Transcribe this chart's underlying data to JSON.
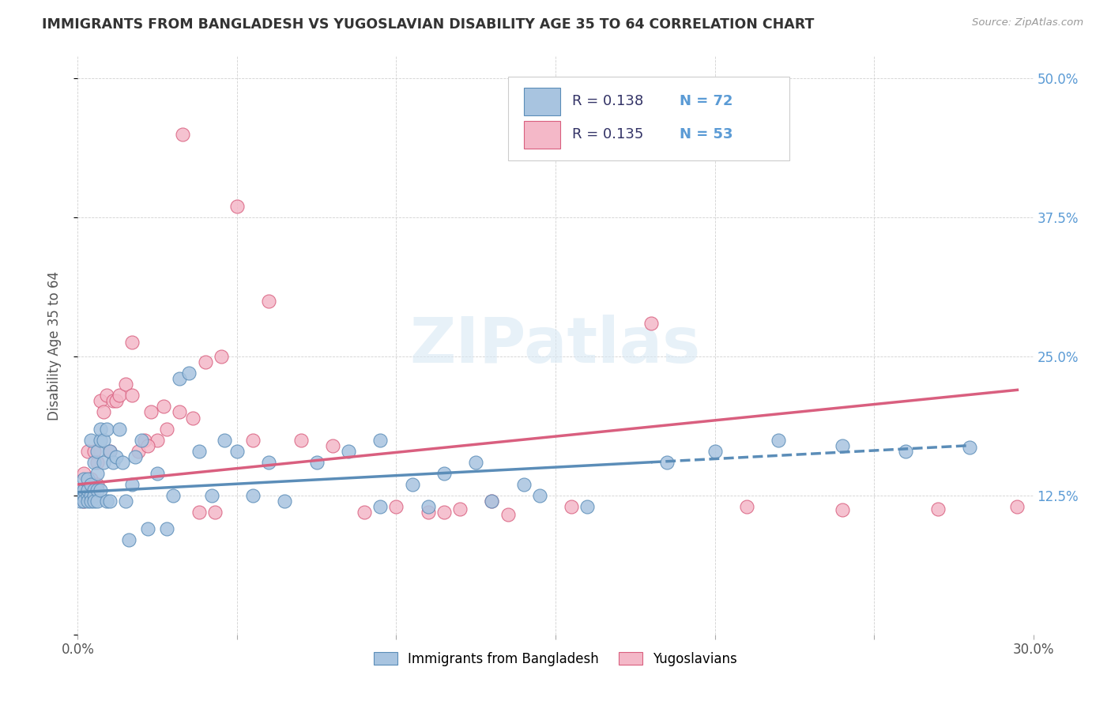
{
  "title": "IMMIGRANTS FROM BANGLADESH VS YUGOSLAVIAN DISABILITY AGE 35 TO 64 CORRELATION CHART",
  "source": "Source: ZipAtlas.com",
  "xlabel": "",
  "ylabel": "Disability Age 35 to 64",
  "xlim": [
    0.0,
    0.3
  ],
  "ylim": [
    0.0,
    0.52
  ],
  "xticks": [
    0.0,
    0.05,
    0.1,
    0.15,
    0.2,
    0.25,
    0.3
  ],
  "xtick_labels": [
    "0.0%",
    "",
    "",
    "",
    "",
    "",
    "30.0%"
  ],
  "yticks": [
    0.0,
    0.125,
    0.25,
    0.375,
    0.5
  ],
  "ytick_labels": [
    "",
    "12.5%",
    "25.0%",
    "37.5%",
    "50.0%"
  ],
  "color_bangladesh": "#a8c4e0",
  "color_yugoslavian": "#f4b8c8",
  "line_color_bangladesh": "#5b8db8",
  "line_color_yugoslavian": "#d95f7f",
  "background_color": "#ffffff",
  "watermark": "ZIPatlas",
  "bangladesh_x": [
    0.001,
    0.001,
    0.001,
    0.002,
    0.002,
    0.002,
    0.002,
    0.003,
    0.003,
    0.003,
    0.003,
    0.004,
    0.004,
    0.004,
    0.004,
    0.005,
    0.005,
    0.005,
    0.005,
    0.006,
    0.006,
    0.006,
    0.006,
    0.007,
    0.007,
    0.007,
    0.008,
    0.008,
    0.009,
    0.009,
    0.01,
    0.01,
    0.011,
    0.012,
    0.013,
    0.014,
    0.015,
    0.016,
    0.017,
    0.018,
    0.02,
    0.022,
    0.025,
    0.028,
    0.03,
    0.032,
    0.035,
    0.038,
    0.042,
    0.046,
    0.05,
    0.055,
    0.06,
    0.065,
    0.075,
    0.085,
    0.095,
    0.105,
    0.115,
    0.13,
    0.145,
    0.16,
    0.185,
    0.2,
    0.22,
    0.24,
    0.26,
    0.28,
    0.095,
    0.11,
    0.125,
    0.14
  ],
  "bangladesh_y": [
    0.125,
    0.13,
    0.12,
    0.125,
    0.13,
    0.12,
    0.14,
    0.125,
    0.13,
    0.12,
    0.14,
    0.125,
    0.135,
    0.12,
    0.175,
    0.13,
    0.125,
    0.155,
    0.12,
    0.145,
    0.13,
    0.165,
    0.12,
    0.175,
    0.185,
    0.13,
    0.155,
    0.175,
    0.185,
    0.12,
    0.165,
    0.12,
    0.155,
    0.16,
    0.185,
    0.155,
    0.12,
    0.085,
    0.135,
    0.16,
    0.175,
    0.095,
    0.145,
    0.095,
    0.125,
    0.23,
    0.235,
    0.165,
    0.125,
    0.175,
    0.165,
    0.125,
    0.155,
    0.12,
    0.155,
    0.165,
    0.175,
    0.135,
    0.145,
    0.12,
    0.125,
    0.115,
    0.155,
    0.165,
    0.175,
    0.17,
    0.165,
    0.168,
    0.115,
    0.115,
    0.155,
    0.135
  ],
  "yugoslavian_x": [
    0.001,
    0.002,
    0.002,
    0.003,
    0.003,
    0.004,
    0.004,
    0.005,
    0.005,
    0.006,
    0.006,
    0.007,
    0.008,
    0.009,
    0.01,
    0.011,
    0.012,
    0.013,
    0.015,
    0.017,
    0.019,
    0.021,
    0.023,
    0.025,
    0.028,
    0.032,
    0.036,
    0.04,
    0.045,
    0.05,
    0.055,
    0.06,
    0.07,
    0.08,
    0.09,
    0.1,
    0.115,
    0.13,
    0.155,
    0.18,
    0.21,
    0.24,
    0.27,
    0.295,
    0.11,
    0.12,
    0.135,
    0.017,
    0.022,
    0.027,
    0.033,
    0.038,
    0.043
  ],
  "yugoslavian_y": [
    0.13,
    0.12,
    0.145,
    0.13,
    0.165,
    0.125,
    0.14,
    0.13,
    0.165,
    0.135,
    0.155,
    0.21,
    0.2,
    0.215,
    0.165,
    0.21,
    0.21,
    0.215,
    0.225,
    0.215,
    0.165,
    0.175,
    0.2,
    0.175,
    0.185,
    0.2,
    0.195,
    0.245,
    0.25,
    0.385,
    0.175,
    0.3,
    0.175,
    0.17,
    0.11,
    0.115,
    0.11,
    0.12,
    0.115,
    0.28,
    0.115,
    0.112,
    0.113,
    0.115,
    0.11,
    0.113,
    0.108,
    0.263,
    0.17,
    0.205,
    0.45,
    0.11,
    0.11
  ],
  "bangladesh_trend_x": [
    0.0,
    0.28
  ],
  "bangladesh_trend_y": [
    0.128,
    0.17
  ],
  "yugoslavian_trend_x": [
    0.0,
    0.295
  ],
  "yugoslavian_trend_y": [
    0.135,
    0.22
  ]
}
